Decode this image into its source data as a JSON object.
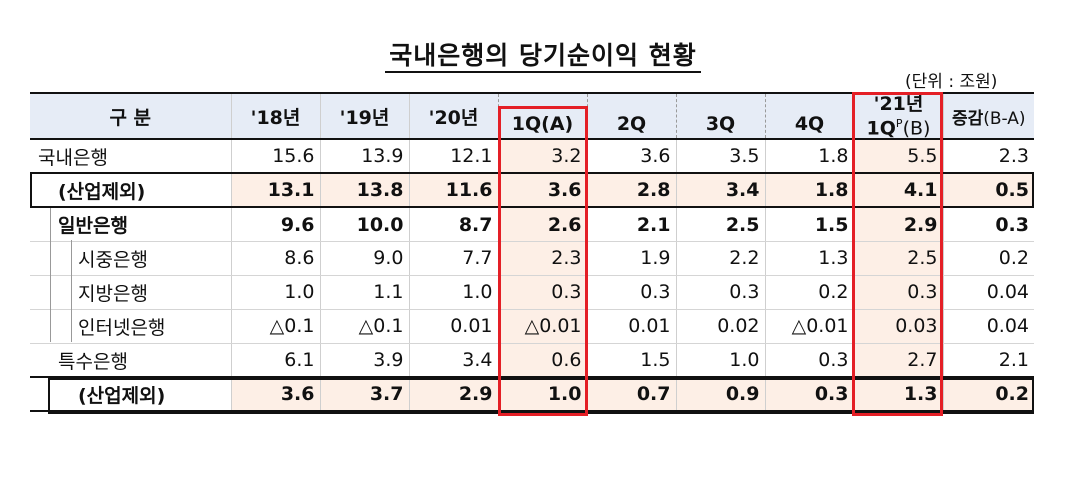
{
  "title": "국내은행의 당기순이익 현황",
  "unit": "(단위 : 조원)",
  "headers": {
    "category": "구 분",
    "y18": "'18년",
    "y19": "'19년",
    "y20": "'20년",
    "q1": "1Q",
    "q1_tag": "(A)",
    "q2": "2Q",
    "q3": "3Q",
    "q4": "4Q",
    "y21": "'21년",
    "y21q1": "1Q",
    "y21q1_sup": "P",
    "y21q1_tag": "(B)",
    "change": "증감",
    "change_tag": "(B-A)"
  },
  "rows": [
    {
      "label": "국내은행",
      "values": [
        "15.6",
        "13.9",
        "12.1",
        "3.2",
        "3.6",
        "3.5",
        "1.8",
        "5.5",
        "2.3"
      ]
    },
    {
      "label": "(산업제외)",
      "values": [
        "13.1",
        "13.8",
        "11.6",
        "3.6",
        "2.8",
        "3.4",
        "1.8",
        "4.1",
        "0.5"
      ]
    },
    {
      "label": "일반은행",
      "values": [
        "9.6",
        "10.0",
        "8.7",
        "2.6",
        "2.1",
        "2.5",
        "1.5",
        "2.9",
        "0.3"
      ]
    },
    {
      "label": "시중은행",
      "values": [
        "8.6",
        "9.0",
        "7.7",
        "2.3",
        "1.9",
        "2.2",
        "1.3",
        "2.5",
        "0.2"
      ]
    },
    {
      "label": "지방은행",
      "values": [
        "1.0",
        "1.1",
        "1.0",
        "0.3",
        "0.3",
        "0.3",
        "0.2",
        "0.3",
        "0.04"
      ]
    },
    {
      "label": "인터넷은행",
      "values": [
        "△0.1",
        "△0.1",
        "0.01",
        "△0.01",
        "0.01",
        "0.02",
        "△0.01",
        "0.03",
        "0.04"
      ]
    },
    {
      "label": "특수은행",
      "values": [
        "6.1",
        "3.9",
        "3.4",
        "0.6",
        "1.5",
        "1.0",
        "0.3",
        "2.7",
        "2.1"
      ]
    },
    {
      "label": "(산업제외)",
      "values": [
        "3.6",
        "3.7",
        "2.9",
        "1.0",
        "0.7",
        "0.9",
        "0.3",
        "1.3",
        "0.2"
      ]
    }
  ]
}
